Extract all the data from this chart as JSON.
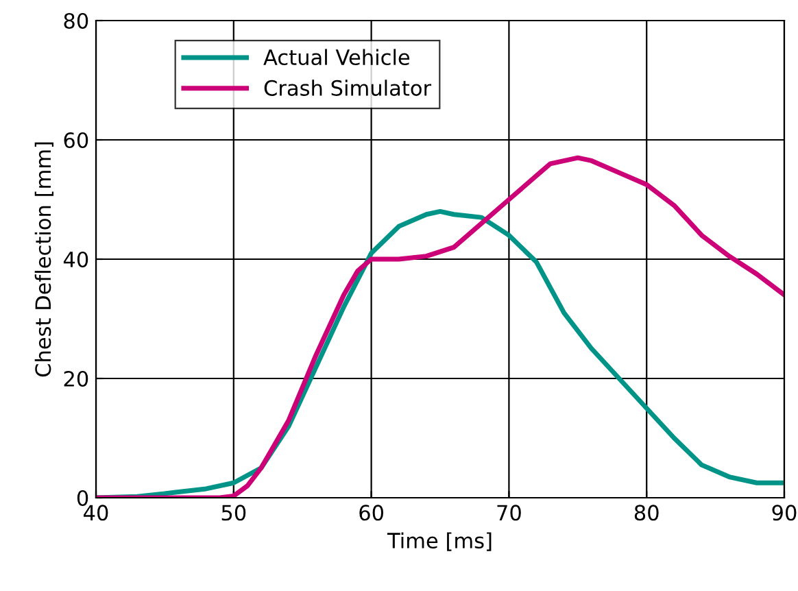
{
  "chart_data": {
    "type": "line",
    "xlabel": "Time [ms]",
    "ylabel": "Chest Deflection [mm]",
    "xlim": [
      40,
      90
    ],
    "xticks": [
      40,
      50,
      60,
      70,
      80,
      90
    ],
    "ylim": [
      0,
      80
    ],
    "yticks": [
      0,
      20,
      40,
      60,
      80
    ],
    "grid": true,
    "legend": "top left",
    "marker": "none",
    "line_style": "solid",
    "series": [
      {
        "name": "Actual Vehicle",
        "color": "#009488",
        "x": [
          40,
          43,
          45,
          48,
          50,
          52,
          54,
          56,
          58,
          60,
          62,
          64,
          65,
          66,
          68,
          70,
          72,
          74,
          76,
          78,
          80,
          82,
          84,
          86,
          88,
          90
        ],
        "values": [
          0,
          0.2,
          0.7,
          1.5,
          2.5,
          5,
          12,
          22,
          32,
          41,
          45.5,
          47.5,
          48,
          47.5,
          47,
          44,
          39.5,
          31,
          25,
          20,
          15,
          10,
          5.5,
          3.5,
          2.5,
          2.5
        ]
      },
      {
        "name": "Crash Simulator",
        "color": "#cc0077",
        "x": [
          40,
          49,
          50,
          51,
          52,
          54,
          56,
          58,
          59,
          60,
          62,
          64,
          66,
          68,
          70,
          72,
          73,
          75,
          76,
          78,
          80,
          82,
          84,
          86,
          88,
          90
        ],
        "values": [
          0,
          0,
          0.3,
          2,
          5,
          13,
          24,
          34,
          38,
          40,
          40,
          40.5,
          42,
          46,
          50,
          54,
          56,
          57,
          56.5,
          54.5,
          52.5,
          49,
          44,
          40.5,
          37.5,
          34
        ]
      }
    ]
  }
}
